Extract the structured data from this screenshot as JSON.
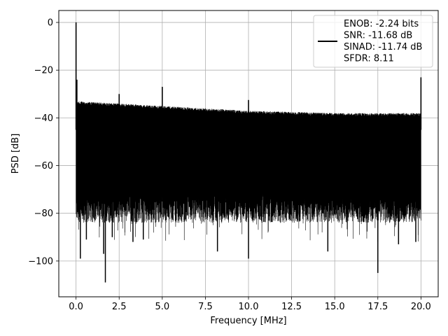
{
  "chart_data": {
    "type": "line",
    "xlabel": "Frequency [MHz]",
    "ylabel": "PSD [dB]",
    "xlim": [
      -1.0,
      21.0
    ],
    "ylim": [
      -115,
      5
    ],
    "x_ticks": [
      0.0,
      2.5,
      5.0,
      7.5,
      10.0,
      12.5,
      15.0,
      17.5,
      20.0
    ],
    "x_tick_labels": [
      "0.0",
      "2.5",
      "5.0",
      "7.5",
      "10.0",
      "12.5",
      "15.0",
      "17.5",
      "20.0"
    ],
    "y_ticks": [
      0,
      -20,
      -40,
      -60,
      -80,
      -100
    ],
    "y_tick_labels": [
      "0",
      "−20",
      "−40",
      "−60",
      "−80",
      "−100"
    ],
    "grid": true,
    "line_color": "#000000",
    "legend": {
      "placement": "top-right",
      "entries": [
        "ENOB: -2.24 bits",
        "SNR: -11.68 dB",
        "SINAD: -11.74 dB",
        "SFDR: 8.11"
      ]
    },
    "series": [
      {
        "x_range": [
          0.0,
          20.0
        ],
        "noise_floor_db": {
          "upper_envelope": [
            [
              0.0,
              -33
            ],
            [
              5.0,
              -35
            ],
            [
              10.0,
              -37
            ],
            [
              15.0,
              -38
            ],
            [
              20.0,
              -38
            ]
          ],
          "lower_typical": -80,
          "deep_dips": [
            [
              0.25,
              -99
            ],
            [
              0.6,
              -91
            ],
            [
              1.6,
              -97
            ],
            [
              1.7,
              -109
            ],
            [
              2.1,
              -90
            ],
            [
              3.3,
              -92
            ],
            [
              3.9,
              -91
            ],
            [
              8.2,
              -96
            ],
            [
              10.0,
              -99
            ],
            [
              14.6,
              -96
            ],
            [
              17.5,
              -105
            ],
            [
              18.7,
              -93
            ],
            [
              19.7,
              -92
            ]
          ]
        },
        "peaks": [
          [
            0.0,
            0
          ],
          [
            0.05,
            -24
          ],
          [
            2.5,
            -30
          ],
          [
            5.0,
            -27
          ],
          [
            10.0,
            -32.5
          ],
          [
            20.0,
            -23
          ]
        ]
      }
    ]
  }
}
